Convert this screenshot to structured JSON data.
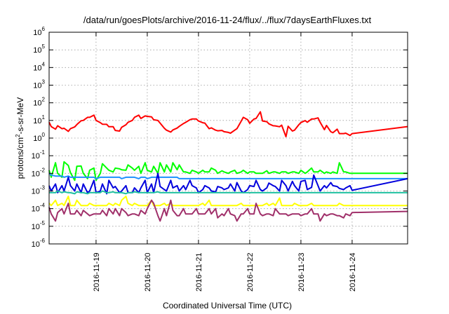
{
  "chart_data": {
    "type": "line",
    "title": "/data/run/goesPlots/archive/2016-11-24/flux/../flux/7daysEarthFluxes.txt",
    "xlabel": "Coordinated Universal Time (UTC)",
    "ylabel": "protons/cm²-s-sr-MeV",
    "ylabel_base": "protons/cm",
    "ylabel_sup": "2",
    "ylabel_tail": "-s-sr-MeV",
    "yscale": "log",
    "ylim": [
      1e-06,
      1000000
    ],
    "xlim": [
      "2016-11-18T02:00",
      "2016-11-25T02:00"
    ],
    "grid": true,
    "legend": "none",
    "yticks": [
      {
        "base": "10",
        "exp": "-6"
      },
      {
        "base": "10",
        "exp": "-5"
      },
      {
        "base": "10",
        "exp": "-4"
      },
      {
        "base": "10",
        "exp": "-3"
      },
      {
        "base": "10",
        "exp": "-2"
      },
      {
        "base": "10",
        "exp": "-1"
      },
      {
        "base": "10",
        "exp": "0"
      },
      {
        "base": "10",
        "exp": "1"
      },
      {
        "base": "10",
        "exp": "2"
      },
      {
        "base": "10",
        "exp": "3"
      },
      {
        "base": "10",
        "exp": "4"
      },
      {
        "base": "10",
        "exp": "5"
      },
      {
        "base": "10",
        "exp": "6"
      }
    ],
    "xticks": [
      "2016-11-19",
      "2016-11-20",
      "2016-11-21",
      "2016-11-22",
      "2016-11-23",
      "2016-11-24"
    ],
    "x": [
      "2016-11-18T02:00",
      "2016-11-18T03:00",
      "2016-11-18T05:00",
      "2016-11-18T06:00",
      "2016-11-18T08:00",
      "2016-11-18T09:00",
      "2016-11-18T11:00",
      "2016-11-18T12:00",
      "2016-11-18T14:00",
      "2016-11-18T15:00",
      "2016-11-18T17:00",
      "2016-11-18T18:00",
      "2016-11-18T20:00",
      "2016-11-18T21:00",
      "2016-11-18T23:00",
      "2016-11-19T00:00",
      "2016-11-19T02:00",
      "2016-11-19T03:00",
      "2016-11-19T05:00",
      "2016-11-19T06:00",
      "2016-11-19T08:00",
      "2016-11-19T09:00",
      "2016-11-19T11:00",
      "2016-11-19T12:00",
      "2016-11-19T14:00",
      "2016-11-19T15:00",
      "2016-11-19T17:00",
      "2016-11-19T18:00",
      "2016-11-19T20:00",
      "2016-11-19T21:00",
      "2016-11-19T23:00",
      "2016-11-20T00:00",
      "2016-11-20T02:00",
      "2016-11-20T03:00",
      "2016-11-20T05:00",
      "2016-11-20T06:00",
      "2016-11-20T08:00",
      "2016-11-20T09:00",
      "2016-11-20T11:00",
      "2016-11-20T12:00",
      "2016-11-20T14:00",
      "2016-11-20T15:00",
      "2016-11-20T17:00",
      "2016-11-20T18:00",
      "2016-11-20T20:00",
      "2016-11-20T21:00",
      "2016-11-20T23:00",
      "2016-11-21T00:00",
      "2016-11-21T02:00",
      "2016-11-21T03:00",
      "2016-11-21T05:00",
      "2016-11-21T06:00",
      "2016-11-21T08:00",
      "2016-11-21T09:00",
      "2016-11-21T11:00",
      "2016-11-21T12:00",
      "2016-11-21T14:00",
      "2016-11-21T15:00",
      "2016-11-21T17:00",
      "2016-11-21T18:00",
      "2016-11-21T20:00",
      "2016-11-21T21:00",
      "2016-11-21T23:00",
      "2016-11-22T00:00",
      "2016-11-22T02:00",
      "2016-11-22T03:00",
      "2016-11-22T05:00",
      "2016-11-22T06:00",
      "2016-11-22T08:00",
      "2016-11-22T09:00",
      "2016-11-22T11:00",
      "2016-11-22T12:00",
      "2016-11-22T14:00",
      "2016-11-22T15:00",
      "2016-11-22T17:00",
      "2016-11-22T18:00",
      "2016-11-22T20:00",
      "2016-11-22T21:00",
      "2016-11-22T23:00",
      "2016-11-23T00:00",
      "2016-11-23T02:00",
      "2016-11-23T03:00",
      "2016-11-23T05:00",
      "2016-11-23T06:00",
      "2016-11-23T08:00",
      "2016-11-23T09:00",
      "2016-11-23T11:00",
      "2016-11-23T12:00",
      "2016-11-23T14:00",
      "2016-11-23T15:00",
      "2016-11-23T17:00",
      "2016-11-23T18:00",
      "2016-11-23T20:00",
      "2016-11-23T21:00",
      "2016-11-23T23:00",
      "2016-11-24T00:00",
      "2016-11-25T02:00"
    ],
    "series": [
      {
        "color": "#ff0000",
        "values": [
          8,
          4.5,
          3.2,
          5,
          3.4,
          3.6,
          2.4,
          3.4,
          4.3,
          5.8,
          9.6,
          10,
          15,
          15,
          20,
          10,
          7.5,
          6.1,
          6,
          4.4,
          4.4,
          2.7,
          2.5,
          4.1,
          5.7,
          7.8,
          10,
          15,
          20,
          13,
          18,
          17,
          16,
          11,
          9.9,
          7.1,
          3.6,
          2.8,
          2.2,
          2.9,
          3.7,
          4.6,
          6.7,
          7.8,
          11,
          12,
          12,
          9.3,
          7.4,
          7.1,
          3.4,
          3.8,
          2.8,
          2.6,
          2.7,
          2.3,
          2.1,
          1.9,
          2.8,
          3.4,
          9.1,
          15,
          11,
          6.9,
          12,
          13,
          31,
          9.3,
          8.5,
          6.4,
          5,
          4.9,
          4.4,
          5.4,
          1.2,
          4.7,
          2.5,
          2.8,
          5.7,
          7.6,
          9.8,
          7.9,
          12,
          12,
          14,
          7.9,
          3,
          5.2,
          2.3,
          2,
          3.2,
          1.8,
          1.8,
          1.9,
          1.4,
          1.8,
          4.5
        ]
      },
      {
        "color": "#00ff00",
        "values": [
          0.015,
          0.006,
          0.04,
          0.01,
          0.006,
          0.045,
          0.028,
          0.011,
          0.004,
          0.025,
          0.026,
          0.01,
          0.005,
          0.015,
          0.02,
          0.004,
          0.01,
          0.035,
          0.02,
          0.015,
          0.012,
          0.02,
          0.018,
          0.016,
          0.015,
          0.03,
          0.02,
          0.015,
          0.025,
          0.01,
          0.04,
          0.015,
          0.012,
          0.025,
          0.01,
          0.04,
          0.012,
          0.03,
          0.012,
          0.04,
          0.016,
          0.03,
          0.012,
          0.012,
          0.01,
          0.015,
          0.012,
          0.01,
          0.015,
          0.012,
          0.012,
          0.02,
          0.015,
          0.01,
          0.014,
          0.012,
          0.01,
          0.012,
          0.015,
          0.01,
          0.012,
          0.015,
          0.01,
          0.012,
          0.012,
          0.01,
          0.01,
          0.01,
          0.014,
          0.01,
          0.012,
          0.012,
          0.01,
          0.012,
          0.012,
          0.01,
          0.012,
          0.012,
          0.01,
          0.015,
          0.01,
          0.012,
          0.02,
          0.012,
          0.012,
          0.015,
          0.01,
          0.012,
          0.01,
          0.012,
          0.01,
          0.04,
          0.012,
          0.012,
          0.01,
          0.01,
          0.01
        ]
      },
      {
        "color": "#1e90ff",
        "values": [
          0.01,
          0.008,
          0.007,
          0.007,
          0.007,
          0.006,
          0.007,
          0.006,
          0.006,
          0.006,
          0.006,
          0.006,
          0.006,
          0.006,
          0.006,
          0.005,
          0.006,
          0.006,
          0.006,
          0.006,
          0.006,
          0.006,
          0.006,
          0.005,
          0.006,
          0.006,
          0.006,
          0.006,
          0.005,
          0.006,
          0.006,
          0.005,
          0.006,
          0.006,
          0.006,
          0.006,
          0.006,
          0.006,
          0.006,
          0.006,
          0.006,
          0.005,
          0.005,
          0.005,
          0.005,
          0.005,
          0.005,
          0.005,
          0.005,
          0.005,
          0.005,
          0.005,
          0.005,
          0.005,
          0.005,
          0.005,
          0.005,
          0.005,
          0.005,
          0.005,
          0.005,
          0.005,
          0.005,
          0.005,
          0.005,
          0.005,
          0.005,
          0.005,
          0.005,
          0.005,
          0.005,
          0.005,
          0.005,
          0.005,
          0.005,
          0.005,
          0.005,
          0.005,
          0.005,
          0.005,
          0.005,
          0.005,
          0.005,
          0.005,
          0.005,
          0.005,
          0.005,
          0.005,
          0.005,
          0.005,
          0.005,
          0.005,
          0.005,
          0.005,
          0.005,
          0.005,
          0.005
        ]
      },
      {
        "color": "#0000dd",
        "values": [
          0.002,
          0.001,
          0.0025,
          0.0008,
          0.002,
          0.001,
          0.006,
          0.002,
          0.001,
          0.0025,
          0.0008,
          0.0025,
          0.0008,
          0.001,
          0.004,
          0.0008,
          0.001,
          0.0025,
          0.0007,
          0.004,
          0.0015,
          0.0018,
          0.0008,
          0.001,
          0.002,
          0.0008,
          0.0008,
          0.0015,
          0.0008,
          0.0015,
          0.004,
          0.0008,
          0.0025,
          0.0008,
          0.01,
          0.0018,
          0.0012,
          0.001,
          0.004,
          0.0015,
          0.002,
          0.001,
          0.002,
          0.0012,
          0.004,
          0.002,
          0.0015,
          0.0008,
          0.0012,
          0.002,
          0.0015,
          0.001,
          0.0009,
          0.0018,
          0.0015,
          0.0012,
          0.0015,
          0.0025,
          0.001,
          0.003,
          0.001,
          0.0008,
          0.0012,
          0.002,
          0.0018,
          0.004,
          0.0012,
          0.001,
          0.0015,
          0.0028,
          0.002,
          0.0018,
          0.001,
          0.004,
          0.002,
          0.001,
          0.0035,
          0.002,
          0.001,
          0.0035,
          0.004,
          0.0012,
          0.0016,
          0.008,
          0.002,
          0.001,
          0.002,
          0.0015,
          0.003,
          0.002,
          0.0018,
          0.0014,
          0.0012,
          0.0015,
          0.002,
          0.0011,
          0.005
        ]
      },
      {
        "color": "#20c0a0",
        "values": [
          0.0008,
          0.0008,
          0.0008,
          0.001,
          0.0008,
          0.0009,
          0.0008,
          0.0008,
          0.0007,
          0.0009,
          0.0008,
          0.0008,
          0.0007,
          0.0008,
          0.0008,
          0.0008,
          0.0008,
          0.001,
          0.0008,
          0.0008,
          0.0009,
          0.0008,
          0.0008,
          0.0008,
          0.0007,
          0.0008,
          0.0008,
          0.0009,
          0.0008,
          0.0008,
          0.0008,
          0.0008,
          0.0008,
          0.0008,
          0.0009,
          0.0008,
          0.0008,
          0.0008,
          0.0008,
          0.0008,
          0.0008,
          0.0008,
          0.0008,
          0.0008,
          0.0008,
          0.0008,
          0.0008,
          0.0008,
          0.0008,
          0.0008,
          0.0008,
          0.0008,
          0.0008,
          0.0008,
          0.0008,
          0.0008,
          0.0008,
          0.0008,
          0.0008,
          0.0008,
          0.0008,
          0.0008,
          0.0008,
          0.0008,
          0.0008,
          0.0008,
          0.0008,
          0.0008,
          0.0008,
          0.0008,
          0.0008,
          0.0008,
          0.0008,
          0.0008,
          0.0008,
          0.0008,
          0.0008,
          0.0008,
          0.0008,
          0.0008,
          0.0008,
          0.0008,
          0.0008,
          0.0008,
          0.0008,
          0.0008,
          0.0008,
          0.0008,
          0.0008,
          0.0008,
          0.0008,
          0.0008,
          0.0008,
          0.0008,
          0.0008,
          0.0008,
          0.0008
        ]
      },
      {
        "color": "#ffff00",
        "values": [
          0.0002,
          0.00015,
          0.0003,
          0.00015,
          0.0002,
          0.00015,
          0.0005,
          0.00015,
          0.00015,
          0.0003,
          0.00015,
          0.00015,
          0.00015,
          0.0002,
          0.00015,
          0.00015,
          0.00015,
          0.00015,
          0.00015,
          0.0002,
          0.00015,
          0.0002,
          0.00015,
          0.0003,
          0.0005,
          0.0002,
          0.00015,
          0.0002,
          0.00015,
          0.00015,
          0.00015,
          0.00015,
          0.0003,
          0.00015,
          0.00015,
          0.00015,
          0.0002,
          0.00015,
          0.0002,
          0.00015,
          0.00015,
          0.00015,
          0.00015,
          0.00015,
          0.00015,
          0.00015,
          0.00015,
          0.00015,
          0.0002,
          0.00015,
          0.0003,
          0.00015,
          0.00015,
          0.00015,
          0.00015,
          0.00015,
          0.00015,
          0.00015,
          0.00015,
          0.00015,
          0.0002,
          0.00015,
          0.00015,
          0.00015,
          0.00015,
          0.00015,
          0.00015,
          0.00015,
          0.0002,
          0.00015,
          0.0002,
          0.00015,
          0.0004,
          0.00015,
          0.00015,
          0.00015,
          0.00015,
          0.0002,
          0.00015,
          0.00015,
          0.00015,
          0.00015,
          0.0002,
          0.00015,
          0.00015,
          0.00015,
          0.00015,
          0.00015,
          0.00015,
          0.00015,
          0.00015,
          0.0002,
          0.00015,
          0.00015,
          0.00015,
          0.00015,
          0.00015
        ]
      },
      {
        "color": "#a0306a",
        "values": [
          0.00012,
          5e-05,
          2e-05,
          6e-05,
          0.0001,
          5e-05,
          0.0002,
          5e-05,
          5e-05,
          8e-05,
          4e-05,
          8e-05,
          5e-05,
          4e-05,
          5e-05,
          5e-05,
          5e-05,
          8e-05,
          4e-05,
          0.0001,
          5e-05,
          0.0001,
          4e-05,
          0.0001,
          6e-05,
          4e-05,
          5e-05,
          5e-05,
          4e-05,
          8e-05,
          5e-05,
          0.0001,
          0.0003,
          0.0002,
          4e-05,
          2e-05,
          0.0001,
          4e-05,
          0.0003,
          8e-05,
          4e-05,
          4e-05,
          0.0001,
          5e-05,
          5e-05,
          5e-05,
          0.0001,
          5e-05,
          5e-05,
          5e-05,
          0.0001,
          5e-05,
          0.0001,
          3e-05,
          5e-05,
          4e-05,
          0.0001,
          5e-05,
          4e-05,
          2e-05,
          5e-05,
          5e-05,
          0.0001,
          5e-05,
          5e-05,
          0.0002,
          5e-05,
          4e-05,
          5e-05,
          5e-05,
          4e-05,
          0.0001,
          5e-05,
          5e-05,
          5e-05,
          4e-05,
          5e-05,
          5e-05,
          5e-05,
          4e-05,
          5e-05,
          5e-05,
          0.0001,
          5e-05,
          5e-05,
          2e-05,
          5e-05,
          4e-05,
          5e-05,
          5e-05,
          4e-05,
          4e-05,
          3e-05,
          5e-05,
          4e-05,
          6e-05,
          7e-05
        ]
      }
    ]
  }
}
